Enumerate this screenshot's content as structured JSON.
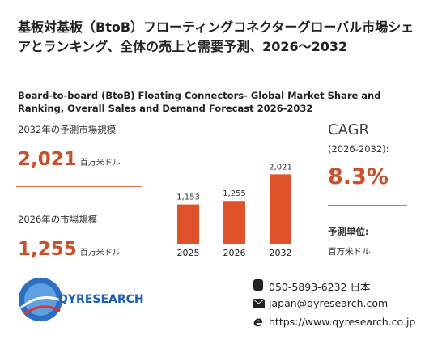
{
  "header": {
    "title": "基板対基板（BtoB）フローティングコネクターグローバル市場シェアとランキング、全体の売上と需要予測、2026～2032",
    "subtitle": "Board-to-board (BtoB) Floating Connectors- Global Market Share and Ranking, Overall Sales and Demand Forecast 2026-2032"
  },
  "forecast": {
    "label": "2032年の予測市場規模",
    "value": "2,021",
    "unit": "百万米ドル"
  },
  "current": {
    "label": "2026年の市場規模",
    "value": "1,255",
    "unit": "百万米ドル"
  },
  "cagr": {
    "label": "CAGR",
    "period": "(2026-2032):",
    "value": "8.3%",
    "unit_label": "予測単位:",
    "unit_value": "百万米ドル"
  },
  "logo": {
    "text": "QYRESEARCH"
  },
  "contact": {
    "phone": "050-5893-6232 日本",
    "email": "japan@qyresearch.com",
    "web": "https://www.qyresearch.co.jp"
  },
  "chart_data": {
    "type": "bar",
    "categories": [
      "2025",
      "2026",
      "2032"
    ],
    "values": [
      1153,
      1255,
      2021
    ],
    "value_labels": [
      "1,153",
      "1,255",
      "2,021"
    ],
    "color": "#e0522a",
    "ylim": [
      0,
      2100
    ]
  }
}
